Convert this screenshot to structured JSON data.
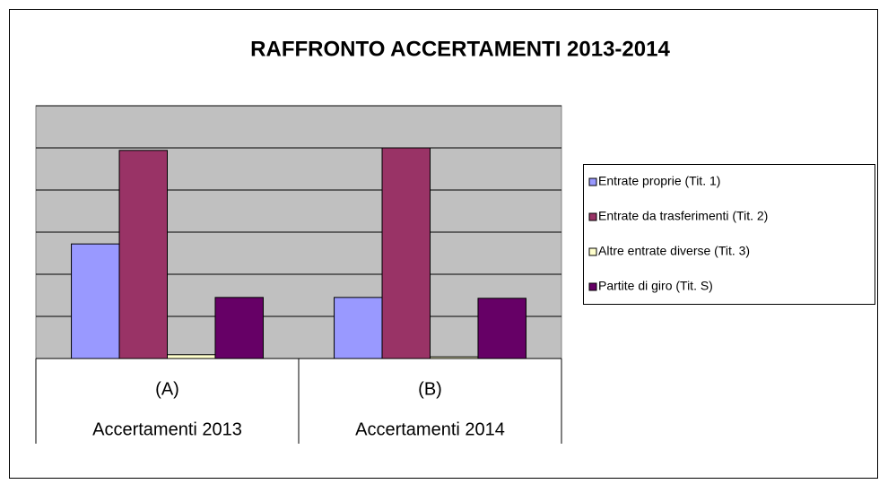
{
  "chart_data": {
    "type": "bar",
    "title": "RAFFRONTO ACCERTAMENTI 2013-2014",
    "categories": [
      "(A)",
      "(B)"
    ],
    "category_sublabels": [
      "Accertamenti 2013",
      "Accertamenti 2014"
    ],
    "series": [
      {
        "name": "Entrate proprie (Tit. 1)",
        "color": "#9999ff",
        "values": [
          2.72,
          1.45
        ]
      },
      {
        "name": "Entrate da trasferimenti (Tit. 2)",
        "color": "#993366",
        "values": [
          4.94,
          5.0
        ]
      },
      {
        "name": "Altre entrate diverse (Tit. 3)",
        "color": "#ffffcc",
        "values": [
          0.09,
          0.04
        ]
      },
      {
        "name": "Partite di giro (Tit. S)",
        "color": "#660066",
        "values": [
          1.45,
          1.43
        ]
      }
    ],
    "ylim": [
      0,
      6
    ],
    "yticks": [
      0,
      1,
      2,
      3,
      4,
      5,
      6
    ],
    "grid": true,
    "legend": "right"
  }
}
